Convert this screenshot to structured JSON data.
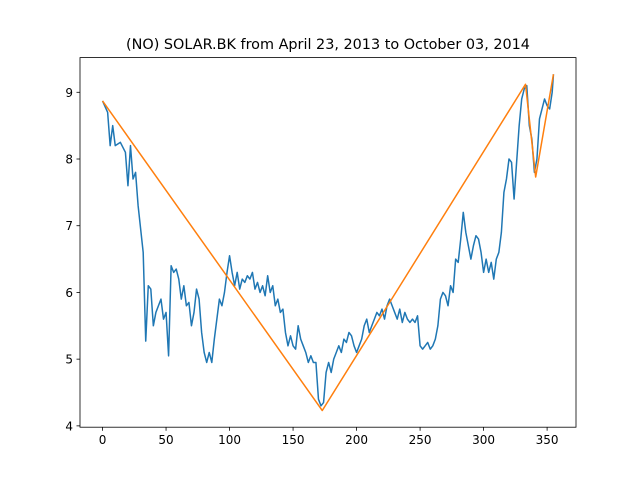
{
  "chart_data": {
    "type": "line",
    "title": "(NO) SOLAR.BK from April 23, 2013 to October 03, 2014",
    "xlim": [
      -17.75,
      372.75
    ],
    "ylim": [
      3.98,
      9.52
    ],
    "xticks": [
      0,
      50,
      100,
      150,
      200,
      250,
      300,
      350
    ],
    "yticks": [
      4,
      5,
      6,
      7,
      8,
      9
    ],
    "grid": false,
    "series": [
      {
        "color": "#1f77b4",
        "x": [
          0,
          4,
          6,
          8,
          10,
          14,
          18,
          20,
          22,
          24,
          26,
          28,
          30,
          32,
          34,
          36,
          38,
          40,
          42,
          44,
          46,
          48,
          50,
          52,
          54,
          56,
          58,
          60,
          62,
          64,
          66,
          68,
          70,
          72,
          74,
          76,
          78,
          80,
          82,
          84,
          86,
          88,
          90,
          92,
          94,
          96,
          98,
          100,
          102,
          104,
          106,
          108,
          110,
          112,
          114,
          116,
          118,
          120,
          122,
          124,
          126,
          128,
          130,
          132,
          134,
          136,
          138,
          140,
          142,
          144,
          146,
          148,
          150,
          152,
          154,
          156,
          158,
          160,
          162,
          164,
          166,
          168,
          170,
          172,
          174,
          176,
          178,
          180,
          182,
          184,
          186,
          188,
          190,
          192,
          194,
          196,
          198,
          200,
          202,
          204,
          206,
          208,
          210,
          212,
          214,
          216,
          218,
          220,
          222,
          224,
          226,
          228,
          230,
          232,
          234,
          236,
          238,
          240,
          242,
          244,
          246,
          248,
          250,
          252,
          254,
          256,
          258,
          260,
          262,
          264,
          266,
          268,
          270,
          272,
          274,
          276,
          278,
          280,
          282,
          284,
          286,
          288,
          290,
          292,
          294,
          296,
          298,
          300,
          302,
          304,
          306,
          308,
          310,
          312,
          314,
          316,
          318,
          320,
          322,
          324,
          326,
          328,
          330,
          332,
          334,
          336,
          338,
          340,
          342,
          344,
          346,
          348,
          350,
          352,
          354,
          355
        ],
        "values": [
          8.87,
          8.7,
          8.2,
          8.5,
          8.2,
          8.25,
          8.1,
          7.6,
          8.2,
          7.7,
          7.8,
          7.3,
          6.95,
          6.6,
          5.27,
          6.1,
          6.05,
          5.5,
          5.7,
          5.8,
          5.9,
          5.6,
          5.7,
          5.05,
          6.4,
          6.3,
          6.35,
          6.2,
          5.9,
          6.1,
          5.8,
          5.85,
          5.5,
          5.7,
          6.05,
          5.9,
          5.4,
          5.1,
          4.95,
          5.1,
          4.95,
          5.3,
          5.6,
          5.9,
          5.8,
          6.0,
          6.3,
          6.55,
          6.3,
          6.1,
          6.3,
          6.05,
          6.2,
          6.15,
          6.25,
          6.2,
          6.3,
          6.05,
          6.15,
          6.0,
          6.1,
          5.95,
          6.25,
          6.0,
          6.1,
          5.8,
          5.9,
          5.7,
          5.75,
          5.4,
          5.2,
          5.35,
          5.2,
          5.15,
          5.5,
          5.3,
          5.2,
          5.1,
          4.95,
          5.05,
          4.95,
          4.95,
          4.4,
          4.3,
          4.35,
          4.8,
          4.95,
          4.8,
          5.0,
          5.1,
          5.2,
          5.1,
          5.3,
          5.25,
          5.4,
          5.35,
          5.2,
          5.1,
          5.2,
          5.3,
          5.5,
          5.6,
          5.4,
          5.5,
          5.6,
          5.7,
          5.65,
          5.75,
          5.6,
          5.8,
          5.9,
          5.8,
          5.7,
          5.6,
          5.75,
          5.55,
          5.7,
          5.6,
          5.55,
          5.6,
          5.55,
          5.65,
          5.2,
          5.15,
          5.2,
          5.25,
          5.15,
          5.2,
          5.3,
          5.5,
          5.9,
          6.0,
          5.95,
          5.8,
          6.1,
          6.0,
          6.5,
          6.45,
          6.8,
          7.2,
          6.9,
          6.7,
          6.5,
          6.7,
          6.85,
          6.8,
          6.6,
          6.3,
          6.5,
          6.3,
          6.45,
          6.2,
          6.5,
          6.6,
          6.9,
          7.5,
          7.7,
          8.0,
          7.95,
          7.4,
          7.95,
          8.5,
          8.9,
          9.05,
          9.1,
          8.5,
          8.3,
          7.8,
          8.0,
          8.6,
          8.75,
          8.9,
          8.8,
          8.75,
          9.0,
          9.27
        ]
      },
      {
        "color": "#ff7f0e",
        "x": [
          0,
          173,
          333,
          341,
          355
        ],
        "values": [
          8.87,
          4.23,
          9.12,
          7.73,
          9.27
        ]
      }
    ]
  }
}
